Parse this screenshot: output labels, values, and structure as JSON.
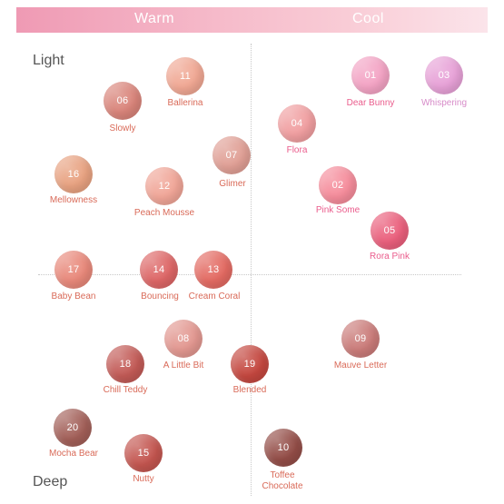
{
  "header": {
    "warm_label": "Warm",
    "cool_label": "Cool"
  },
  "axis": {
    "light_label": "Light",
    "deep_label": "Deep"
  },
  "shades": [
    {
      "num": "11",
      "name": "Ballerina",
      "color": "#f0a793"
    },
    {
      "num": "06",
      "name": "Slowly",
      "color": "#d9847a"
    },
    {
      "num": "07",
      "name": "Glimer",
      "color": "#e09f95"
    },
    {
      "num": "16",
      "name": "Mellowness",
      "color": "#e8a281"
    },
    {
      "num": "12",
      "name": "Peach Mousse",
      "color": "#f0a597"
    },
    {
      "num": "01",
      "name": "Dear Bunny",
      "color": "#f3a3c4"
    },
    {
      "num": "03",
      "name": "Whispering",
      "color": "#e7a1d7"
    },
    {
      "num": "04",
      "name": "Flora",
      "color": "#f09ea0"
    },
    {
      "num": "02",
      "name": "Pink Some",
      "color": "#f58c9b"
    },
    {
      "num": "05",
      "name": "Rora Pink",
      "color": "#ea5f7c"
    },
    {
      "num": "17",
      "name": "Baby Bean",
      "color": "#e8887a"
    },
    {
      "num": "14",
      "name": "Bouncing",
      "color": "#dd6666"
    },
    {
      "num": "13",
      "name": "Cream Coral",
      "color": "#e36a62"
    },
    {
      "num": "08",
      "name": "A Little Bit",
      "color": "#e29790"
    },
    {
      "num": "18",
      "name": "Chill Teddy",
      "color": "#c25a56"
    },
    {
      "num": "19",
      "name": "Blended",
      "color": "#c4473f"
    },
    {
      "num": "09",
      "name": "Mauve Letter",
      "color": "#ca7b79"
    },
    {
      "num": "20",
      "name": "Mocha Bear",
      "color": "#a25f58"
    },
    {
      "num": "15",
      "name": "Nutty",
      "color": "#c3554f"
    },
    {
      "num": "10",
      "name": "Toffee Chocolate",
      "color": "#934d47"
    }
  ]
}
